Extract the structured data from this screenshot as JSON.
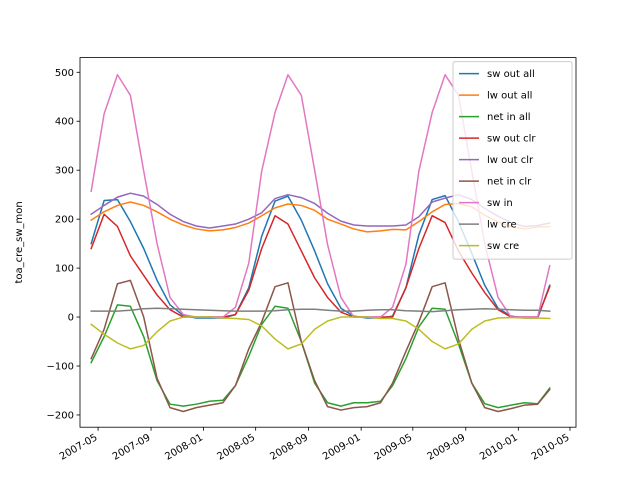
{
  "chart_data": {
    "type": "line",
    "title": "",
    "xlabel": "",
    "ylabel": "toa_cre_sw_mon",
    "grid": false,
    "legend_position": "upper right",
    "xlim": [
      "2007-03-20",
      "2010-05-15"
    ],
    "ylim": [
      -225,
      530
    ],
    "xticks": [
      "2007-05",
      "2007-09",
      "2008-01",
      "2008-05",
      "2008-09",
      "2009-01",
      "2009-05",
      "2009-09",
      "2010-01",
      "2010-05"
    ],
    "yticks": [
      -200,
      -100,
      0,
      100,
      200,
      300,
      400,
      500
    ],
    "x": [
      "2007-04-15",
      "2007-05-15",
      "2007-06-15",
      "2007-07-15",
      "2007-08-15",
      "2007-09-15",
      "2007-10-15",
      "2007-11-15",
      "2007-12-15",
      "2008-01-15",
      "2008-02-15",
      "2008-03-15",
      "2008-04-15",
      "2008-05-15",
      "2008-06-15",
      "2008-07-15",
      "2008-08-15",
      "2008-09-15",
      "2008-10-15",
      "2008-11-15",
      "2008-12-15",
      "2009-01-15",
      "2009-02-15",
      "2009-03-15",
      "2009-04-15",
      "2009-05-15",
      "2009-06-15",
      "2009-07-15",
      "2009-08-15",
      "2009-09-15",
      "2009-10-15",
      "2009-11-15",
      "2009-12-15",
      "2010-01-15",
      "2010-02-15",
      "2010-03-15"
    ],
    "series": [
      {
        "name": "sw out all",
        "color": "#1f77b4",
        "values": [
          150,
          238,
          240,
          195,
          140,
          75,
          25,
          3,
          -2,
          -2,
          -2,
          5,
          60,
          165,
          237,
          247,
          198,
          135,
          68,
          18,
          2,
          -2,
          -2,
          2,
          60,
          168,
          240,
          248,
          195,
          130,
          65,
          18,
          2,
          -2,
          -2,
          65
        ]
      },
      {
        "name": "lw out all",
        "color": "#ff7f0e",
        "values": [
          198,
          215,
          228,
          235,
          228,
          215,
          200,
          188,
          180,
          176,
          178,
          183,
          192,
          207,
          223,
          231,
          228,
          218,
          200,
          190,
          180,
          174,
          176,
          179,
          178,
          195,
          215,
          230,
          232,
          225,
          208,
          194,
          185,
          180,
          184,
          185
        ]
      },
      {
        "name": "net in all",
        "color": "#2ca02c",
        "values": [
          -93,
          -40,
          25,
          22,
          -40,
          -130,
          -178,
          -182,
          -178,
          -172,
          -170,
          -140,
          -80,
          -15,
          22,
          18,
          -50,
          -135,
          -175,
          -182,
          -175,
          -175,
          -172,
          -140,
          -85,
          -20,
          18,
          16,
          -55,
          -135,
          -177,
          -185,
          -180,
          -175,
          -177,
          -145
        ]
      },
      {
        "name": "sw out clr",
        "color": "#d62728",
        "values": [
          140,
          210,
          185,
          125,
          85,
          45,
          15,
          0,
          0,
          0,
          0,
          5,
          55,
          140,
          207,
          190,
          135,
          80,
          40,
          10,
          0,
          0,
          0,
          0,
          60,
          140,
          207,
          193,
          135,
          90,
          50,
          15,
          0,
          0,
          0,
          62
        ]
      },
      {
        "name": "lw out clr",
        "color": "#9467bd",
        "values": [
          210,
          228,
          245,
          253,
          247,
          230,
          210,
          195,
          186,
          182,
          186,
          190,
          200,
          213,
          242,
          250,
          244,
          232,
          212,
          196,
          188,
          186,
          186,
          186,
          188,
          205,
          235,
          243,
          250,
          240,
          222,
          206,
          193,
          185,
          187,
          192
        ]
      },
      {
        "name": "net in clr",
        "color": "#8c564b",
        "values": [
          -85,
          -25,
          68,
          75,
          0,
          -125,
          -185,
          -193,
          -185,
          -180,
          -175,
          -140,
          -65,
          -10,
          62,
          70,
          -50,
          -130,
          -183,
          -190,
          -185,
          -183,
          -175,
          -135,
          -70,
          -10,
          62,
          70,
          -45,
          -135,
          -185,
          -193,
          -187,
          -180,
          -178,
          -148
        ]
      },
      {
        "name": "sw in",
        "color": "#e377c2",
        "values": [
          257,
          415,
          495,
          453,
          298,
          150,
          40,
          5,
          0,
          0,
          0,
          20,
          110,
          298,
          418,
          495,
          453,
          300,
          148,
          40,
          0,
          0,
          0,
          20,
          108,
          298,
          418,
          495,
          453,
          298,
          150,
          40,
          0,
          0,
          0,
          105
        ]
      },
      {
        "name": "lw cre",
        "color": "#7f7f7f",
        "values": [
          12,
          12,
          12,
          14,
          17,
          18,
          17,
          16,
          15,
          14,
          13,
          12,
          12,
          12,
          13,
          15,
          16,
          16,
          14,
          12,
          12,
          14,
          15,
          15,
          13,
          12,
          11,
          13,
          15,
          16,
          17,
          16,
          15,
          14,
          14,
          12
        ]
      },
      {
        "name": "sw cre",
        "color": "#bcbd22",
        "values": [
          -15,
          -35,
          -53,
          -65,
          -58,
          -30,
          -8,
          0,
          0,
          0,
          -2,
          -3,
          -5,
          -18,
          -45,
          -65,
          -55,
          -25,
          -8,
          0,
          0,
          0,
          -3,
          -3,
          -8,
          -25,
          -50,
          -65,
          -55,
          -25,
          -8,
          -2,
          -1,
          -2,
          -2,
          -3
        ]
      }
    ]
  }
}
